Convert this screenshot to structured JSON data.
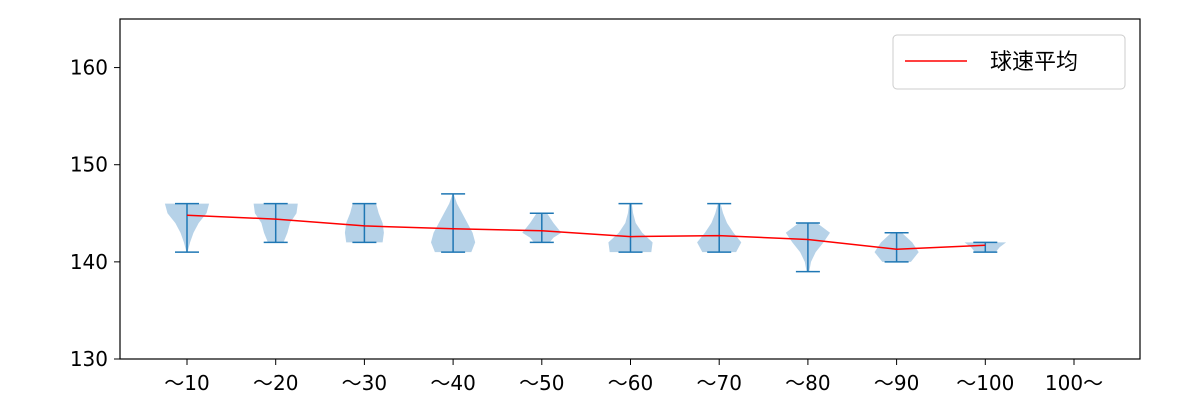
{
  "chart_data": {
    "type": "violin",
    "categories": [
      "～10",
      "～20",
      "～30",
      "～40",
      "～50",
      "～60",
      "～70",
      "～80",
      "～90",
      "～100",
      "100～"
    ],
    "ylim": [
      130,
      165
    ],
    "yticks": [
      130,
      140,
      150,
      160
    ],
    "legend": {
      "label": "球速平均",
      "placement": "top-right"
    },
    "colors": {
      "mean_line": "#ff0000",
      "whisker": "#1f77b4",
      "violin_fill": "#9dc3e0"
    },
    "series": [
      {
        "name": "球速平均",
        "values": [
          144.8,
          144.4,
          143.7,
          143.4,
          143.2,
          142.6,
          142.7,
          142.3,
          141.3,
          141.7,
          null
        ]
      }
    ],
    "distributions": [
      {
        "min": 141,
        "max": 146,
        "profile": [
          [
            141,
            0.02
          ],
          [
            142,
            0.12
          ],
          [
            143,
            0.25
          ],
          [
            144,
            0.45
          ],
          [
            145,
            0.75
          ],
          [
            146,
            0.85
          ]
        ]
      },
      {
        "min": 142,
        "max": 146,
        "profile": [
          [
            142,
            0.3
          ],
          [
            143,
            0.45
          ],
          [
            144,
            0.55
          ],
          [
            145,
            0.8
          ],
          [
            146,
            0.85
          ]
        ]
      },
      {
        "min": 142,
        "max": 146,
        "profile": [
          [
            142,
            0.7
          ],
          [
            143,
            0.75
          ],
          [
            144,
            0.7
          ],
          [
            145,
            0.55
          ],
          [
            146,
            0.45
          ]
        ]
      },
      {
        "min": 141,
        "max": 147,
        "profile": [
          [
            141,
            0.7
          ],
          [
            142,
            0.85
          ],
          [
            143,
            0.75
          ],
          [
            144,
            0.55
          ],
          [
            145,
            0.35
          ],
          [
            146,
            0.15
          ],
          [
            147,
            0.02
          ]
        ]
      },
      {
        "min": 142,
        "max": 145,
        "profile": [
          [
            142,
            0.3
          ],
          [
            142.5,
            0.45
          ],
          [
            143,
            0.75
          ],
          [
            144,
            0.45
          ],
          [
            145,
            0.2
          ]
        ]
      },
      {
        "min": 141,
        "max": 146,
        "profile": [
          [
            141,
            0.8
          ],
          [
            142,
            0.85
          ],
          [
            143,
            0.45
          ],
          [
            144,
            0.2
          ],
          [
            145,
            0.1
          ],
          [
            146,
            0.05
          ]
        ]
      },
      {
        "min": 141,
        "max": 146,
        "profile": [
          [
            141,
            0.65
          ],
          [
            142,
            0.85
          ],
          [
            143,
            0.55
          ],
          [
            144,
            0.3
          ],
          [
            145,
            0.15
          ],
          [
            146,
            0.05
          ]
        ]
      },
      {
        "min": 139,
        "max": 144,
        "profile": [
          [
            139,
            0.05
          ],
          [
            140,
            0.12
          ],
          [
            141,
            0.3
          ],
          [
            142,
            0.6
          ],
          [
            143,
            0.85
          ],
          [
            144,
            0.35
          ]
        ]
      },
      {
        "min": 140,
        "max": 143,
        "profile": [
          [
            140,
            0.55
          ],
          [
            141,
            0.85
          ],
          [
            142,
            0.6
          ],
          [
            143,
            0.2
          ]
        ]
      },
      {
        "min": 141,
        "max": 142,
        "profile": [
          [
            141,
            0.4
          ],
          [
            141.5,
            0.55
          ],
          [
            142,
            0.8
          ]
        ]
      },
      null
    ]
  }
}
